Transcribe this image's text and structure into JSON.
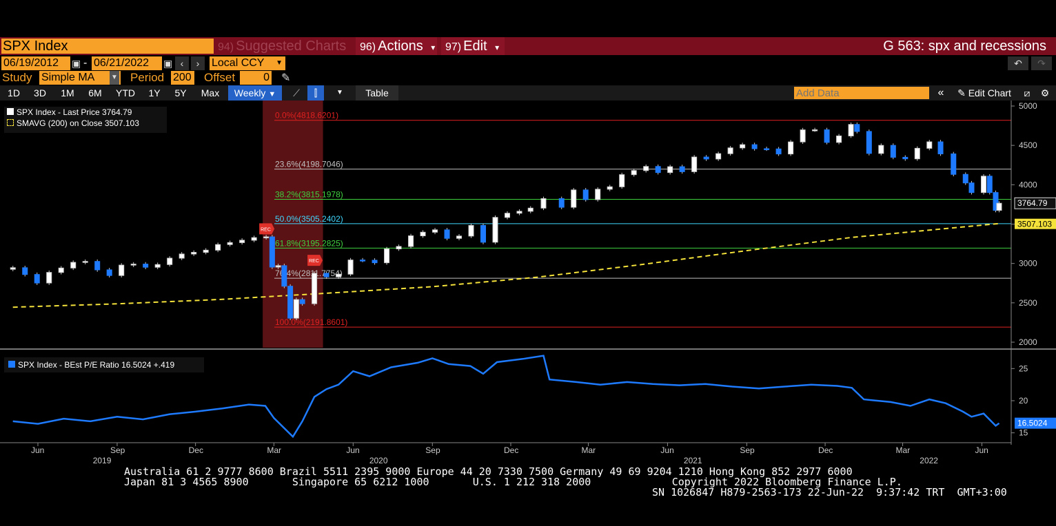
{
  "header": {
    "ticker": "SPX Index",
    "menu": [
      {
        "num": "94)",
        "label": "Suggested Charts",
        "dim": true
      },
      {
        "num": "96)",
        "label": "Actions",
        "caret": "▾"
      },
      {
        "num": "97)",
        "label": "Edit",
        "caret": "▾"
      }
    ],
    "title": "G 563: spx and recessions"
  },
  "controls": {
    "start_date": "06/19/2012",
    "dash": "-",
    "end_date": "06/21/2022",
    "currency": "Local CCY",
    "study_label": "Study",
    "study_value": "Simple MA",
    "period_label": "Period",
    "period_value": "200",
    "offset_label": "Offset",
    "offset_value": "0"
  },
  "toolbar": {
    "ranges": [
      "1D",
      "3D",
      "1M",
      "6M",
      "YTD",
      "1Y",
      "5Y",
      "Max"
    ],
    "frequency": "Weekly",
    "table_label": "Table",
    "add_data_placeholder": "Add Data",
    "edit_chart_label": "Edit Chart"
  },
  "legends": {
    "main": [
      {
        "text": "SPX Index - Last Price 3764.79",
        "color": "#ffffff"
      },
      {
        "text": "SMAVG (200)  on Close 3507.103",
        "color": "#f5e33b"
      }
    ],
    "sub": {
      "text": "SPX Index - BEst P/E Ratio 16.5024   +.419",
      "color": "#1e7bff"
    }
  },
  "chart_data": [
    {
      "type": "candlestick",
      "title": "",
      "y_ticks": [
        5000,
        4500,
        4000,
        3500,
        3000,
        2500,
        2000
      ],
      "ylim": [
        2000,
        5000
      ],
      "last_price": {
        "label": "3764.79",
        "value": 3764.79
      },
      "sma_last": {
        "label": "3507.103",
        "value": 3507.103
      },
      "recession_bands": [
        [
          "2020-02-17",
          "2020-04-27"
        ]
      ],
      "recession_marker": "REC",
      "fib_levels": [
        {
          "label": "0.0%(4818.6201)",
          "value": 4818.62,
          "color": "#e02020"
        },
        {
          "label": "23.6%(4198.7046)",
          "value": 4198.7,
          "color": "#c0c0c0"
        },
        {
          "label": "38.2%(3815.1978)",
          "value": 3815.2,
          "color": "#3fd23f"
        },
        {
          "label": "50.0%(3505.2402)",
          "value": 3505.24,
          "color": "#40d8ff"
        },
        {
          "label": "61.8%(3195.2825)",
          "value": 3195.28,
          "color": "#3fd23f"
        },
        {
          "label": "76.4%(2811.7754)",
          "value": 2811.78,
          "color": "#c0c0c0"
        },
        {
          "label": "100.0%(2191.8601)",
          "value": 2191.86,
          "color": "#e02020"
        }
      ],
      "close_series": [
        [
          "2019-05-03",
          2946
        ],
        [
          "2019-05-17",
          2860
        ],
        [
          "2019-05-31",
          2752
        ],
        [
          "2019-06-14",
          2886
        ],
        [
          "2019-06-28",
          2942
        ],
        [
          "2019-07-12",
          3014
        ],
        [
          "2019-07-26",
          3026
        ],
        [
          "2019-08-09",
          2919
        ],
        [
          "2019-08-23",
          2847
        ],
        [
          "2019-09-06",
          2979
        ],
        [
          "2019-09-20",
          2992
        ],
        [
          "2019-10-04",
          2952
        ],
        [
          "2019-10-18",
          2986
        ],
        [
          "2019-11-01",
          3067
        ],
        [
          "2019-11-15",
          3120
        ],
        [
          "2019-11-29",
          3141
        ],
        [
          "2019-12-13",
          3169
        ],
        [
          "2019-12-27",
          3240
        ],
        [
          "2020-01-10",
          3265
        ],
        [
          "2020-01-24",
          3295
        ],
        [
          "2020-02-07",
          3328
        ],
        [
          "2020-02-21",
          3338
        ],
        [
          "2020-02-28",
          2954
        ],
        [
          "2020-03-06",
          2972
        ],
        [
          "2020-03-13",
          2711
        ],
        [
          "2020-03-20",
          2305
        ],
        [
          "2020-03-27",
          2541
        ],
        [
          "2020-04-03",
          2489
        ],
        [
          "2020-04-17",
          2875
        ],
        [
          "2020-05-01",
          2830
        ],
        [
          "2020-05-15",
          2864
        ],
        [
          "2020-05-29",
          3044
        ],
        [
          "2020-06-12",
          3041
        ],
        [
          "2020-06-26",
          3009
        ],
        [
          "2020-07-10",
          3185
        ],
        [
          "2020-07-24",
          3216
        ],
        [
          "2020-08-07",
          3351
        ],
        [
          "2020-08-21",
          3397
        ],
        [
          "2020-09-04",
          3427
        ],
        [
          "2020-09-18",
          3319
        ],
        [
          "2020-10-02",
          3348
        ],
        [
          "2020-10-16",
          3483
        ],
        [
          "2020-10-30",
          3270
        ],
        [
          "2020-11-13",
          3585
        ],
        [
          "2020-11-27",
          3638
        ],
        [
          "2020-12-11",
          3663
        ],
        [
          "2020-12-24",
          3703
        ],
        [
          "2021-01-08",
          3824
        ],
        [
          "2021-01-29",
          3714
        ],
        [
          "2021-02-12",
          3934
        ],
        [
          "2021-02-26",
          3811
        ],
        [
          "2021-03-12",
          3943
        ],
        [
          "2021-03-26",
          3974
        ],
        [
          "2021-04-09",
          4128
        ],
        [
          "2021-04-23",
          4180
        ],
        [
          "2021-05-07",
          4232
        ],
        [
          "2021-05-21",
          4155
        ],
        [
          "2021-06-04",
          4229
        ],
        [
          "2021-06-18",
          4166
        ],
        [
          "2021-07-02",
          4352
        ],
        [
          "2021-07-16",
          4327
        ],
        [
          "2021-07-30",
          4395
        ],
        [
          "2021-08-13",
          4468
        ],
        [
          "2021-08-27",
          4509
        ],
        [
          "2021-09-10",
          4458
        ],
        [
          "2021-09-24",
          4455
        ],
        [
          "2021-10-08",
          4391
        ],
        [
          "2021-10-22",
          4544
        ],
        [
          "2021-11-05",
          4697
        ],
        [
          "2021-11-19",
          4698
        ],
        [
          "2021-12-03",
          4538
        ],
        [
          "2021-12-17",
          4620
        ],
        [
          "2021-12-31",
          4766
        ],
        [
          "2022-01-07",
          4677
        ],
        [
          "2022-01-21",
          4398
        ],
        [
          "2022-02-04",
          4500
        ],
        [
          "2022-02-18",
          4349
        ],
        [
          "2022-03-04",
          4329
        ],
        [
          "2022-03-18",
          4463
        ],
        [
          "2022-04-01",
          4545
        ],
        [
          "2022-04-14",
          4392
        ],
        [
          "2022-04-29",
          4132
        ],
        [
          "2022-05-13",
          4023
        ],
        [
          "2022-05-20",
          3901
        ],
        [
          "2022-06-03",
          4109
        ],
        [
          "2022-06-10",
          3901
        ],
        [
          "2022-06-17",
          3675
        ],
        [
          "2022-06-21",
          3765
        ]
      ],
      "sma_series": [
        [
          "2019-05-03",
          2444
        ],
        [
          "2019-09-01",
          2487
        ],
        [
          "2020-01-01",
          2544
        ],
        [
          "2020-05-01",
          2622
        ],
        [
          "2020-09-01",
          2705
        ],
        [
          "2021-01-01",
          2826
        ],
        [
          "2021-05-01",
          2985
        ],
        [
          "2021-09-01",
          3163
        ],
        [
          "2022-01-01",
          3331
        ],
        [
          "2022-06-21",
          3507
        ]
      ]
    },
    {
      "type": "line",
      "title": "",
      "y_ticks": [
        25,
        20,
        15
      ],
      "ylim": [
        14,
        27.5
      ],
      "last": {
        "label": "16.5024",
        "value": 16.5024
      },
      "series": [
        {
          "name": "SPX Index - BEst P/E Ratio",
          "values": [
            [
              "2019-05-03",
              16.8
            ],
            [
              "2019-06-01",
              16.4
            ],
            [
              "2019-07-01",
              17.2
            ],
            [
              "2019-08-01",
              16.8
            ],
            [
              "2019-09-01",
              17.5
            ],
            [
              "2019-10-01",
              17.1
            ],
            [
              "2019-11-01",
              17.9
            ],
            [
              "2019-12-01",
              18.3
            ],
            [
              "2020-01-01",
              18.8
            ],
            [
              "2020-02-01",
              19.4
            ],
            [
              "2020-02-20",
              19.2
            ],
            [
              "2020-03-01",
              17.3
            ],
            [
              "2020-03-23",
              14.4
            ],
            [
              "2020-04-03",
              16.8
            ],
            [
              "2020-04-17",
              20.6
            ],
            [
              "2020-05-01",
              21.8
            ],
            [
              "2020-05-15",
              22.5
            ],
            [
              "2020-06-01",
              24.6
            ],
            [
              "2020-06-20",
              23.8
            ],
            [
              "2020-07-15",
              25.2
            ],
            [
              "2020-08-15",
              25.9
            ],
            [
              "2020-09-01",
              26.6
            ],
            [
              "2020-09-20",
              25.7
            ],
            [
              "2020-10-15",
              25.4
            ],
            [
              "2020-10-30",
              24.2
            ],
            [
              "2020-11-15",
              26.0
            ],
            [
              "2020-12-15",
              26.5
            ],
            [
              "2021-01-08",
              27.0
            ],
            [
              "2021-01-15",
              23.3
            ],
            [
              "2021-02-15",
              22.9
            ],
            [
              "2021-03-15",
              22.5
            ],
            [
              "2021-04-15",
              22.9
            ],
            [
              "2021-05-15",
              22.6
            ],
            [
              "2021-06-15",
              22.4
            ],
            [
              "2021-07-15",
              22.6
            ],
            [
              "2021-08-15",
              22.2
            ],
            [
              "2021-09-15",
              21.9
            ],
            [
              "2021-10-15",
              22.2
            ],
            [
              "2021-11-15",
              22.5
            ],
            [
              "2021-12-15",
              22.3
            ],
            [
              "2022-01-01",
              22.0
            ],
            [
              "2022-01-15",
              20.2
            ],
            [
              "2022-02-15",
              19.8
            ],
            [
              "2022-03-10",
              19.2
            ],
            [
              "2022-04-01",
              20.2
            ],
            [
              "2022-04-20",
              19.6
            ],
            [
              "2022-05-10",
              18.3
            ],
            [
              "2022-05-20",
              17.5
            ],
            [
              "2022-06-03",
              18.0
            ],
            [
              "2022-06-17",
              16.1
            ],
            [
              "2022-06-21",
              16.5
            ]
          ]
        }
      ]
    }
  ],
  "x_axis": {
    "months": [
      {
        "label": "Jun",
        "date": "2019-06-01"
      },
      {
        "label": "Sep",
        "date": "2019-09-01"
      },
      {
        "label": "Dec",
        "date": "2019-12-01"
      },
      {
        "label": "Mar",
        "date": "2020-03-01"
      },
      {
        "label": "Jun",
        "date": "2020-06-01"
      },
      {
        "label": "Sep",
        "date": "2020-09-01"
      },
      {
        "label": "Dec",
        "date": "2020-12-01"
      },
      {
        "label": "Mar",
        "date": "2021-03-01"
      },
      {
        "label": "Jun",
        "date": "2021-06-01"
      },
      {
        "label": "Sep",
        "date": "2021-09-01"
      },
      {
        "label": "Dec",
        "date": "2021-12-01"
      },
      {
        "label": "Mar",
        "date": "2022-03-01"
      },
      {
        "label": "Jun",
        "date": "2022-06-01"
      }
    ],
    "years": [
      {
        "label": "2019",
        "date": "2019-08-15"
      },
      {
        "label": "2020",
        "date": "2020-07-01"
      },
      {
        "label": "2021",
        "date": "2021-07-01"
      },
      {
        "label": "2022",
        "date": "2022-04-01"
      }
    ]
  },
  "footer": {
    "line1": "Australia 61 2 9777 8600 Brazil 5511 2395 9000 Europe 44 20 7330 7500 Germany 49 69 9204 1210 Hong Kong 852 2977 6000",
    "line2": "Japan 81 3 4565 8900       Singapore 65 6212 1000       U.S. 1 212 318 2000             Copyright 2022 Bloomberg Finance L.P.",
    "line3": "SN 1026847 H879-2563-173 22-Jun-22  9:37:42 TRT  GMT+3:00"
  }
}
